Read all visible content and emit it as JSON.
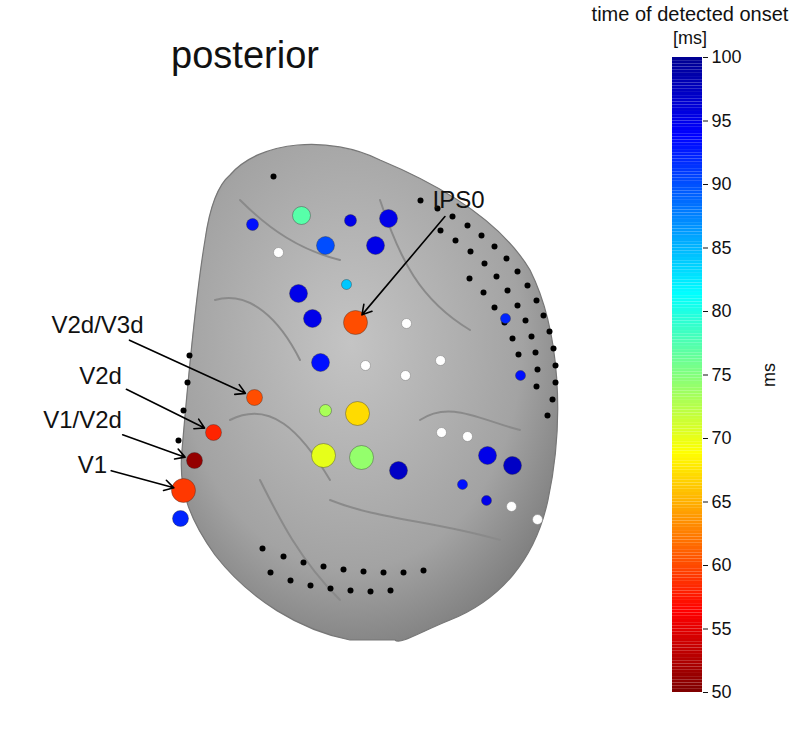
{
  "chart_data": {
    "type": "scatter",
    "title": "posterior",
    "tick_labels": false,
    "xlim": [
      0,
      800
    ],
    "ylim": [
      0,
      738
    ],
    "colorbar": {
      "title": "time of detected onset",
      "unit": "[ms]",
      "label": "ms",
      "range": [
        50,
        100
      ],
      "ticks": [
        50,
        55,
        60,
        65,
        70,
        75,
        80,
        85,
        90,
        95,
        100
      ]
    },
    "series": [
      {
        "color": "black",
        "x": [
          273,
          420,
          437,
          452,
          467,
          481,
          494,
          506,
          517,
          527,
          536,
          543,
          549,
          553,
          555,
          555,
          552,
          547,
          440,
          455,
          470,
          484,
          496,
          507,
          517,
          525,
          531,
          535,
          537,
          536,
          469,
          483,
          494,
          504,
          512,
          518,
          189,
          187,
          183,
          178,
          262,
          283,
          303,
          323,
          343,
          363,
          383,
          403,
          423,
          270,
          290,
          310,
          330,
          350,
          370,
          390
        ],
        "y": [
          176,
          200,
          208,
          216,
          225,
          235,
          246,
          258,
          271,
          285,
          300,
          315,
          331,
          348,
          365,
          382,
          399,
          415,
          230,
          240,
          251,
          263,
          276,
          290,
          305,
          320,
          336,
          352,
          369,
          386,
          278,
          292,
          307,
          322,
          338,
          354,
          355,
          382,
          410,
          440,
          548,
          556,
          562,
          566,
          569,
          571,
          572,
          572,
          570,
          572,
          580,
          585,
          588,
          590,
          591,
          590
        ]
      },
      {
        "color": "white",
        "x": [
          278,
          406,
          365,
          405,
          440,
          441,
          467,
          511,
          537
        ],
        "y": [
          252,
          323,
          365,
          375,
          360,
          432,
          436,
          506,
          519
        ]
      },
      {
        "x": [
          301,
          252,
          350,
          388,
          325,
          375,
          346,
          298,
          312,
          355,
          320,
          254,
          213,
          194,
          183,
          180,
          325,
          357,
          323,
          361,
          398,
          505,
          520,
          487,
          512,
          462,
          486
        ],
        "y": [
          215,
          224,
          220,
          218,
          245,
          245,
          284,
          293,
          318,
          322,
          362,
          397,
          432,
          460,
          490,
          518,
          410,
          413,
          455,
          457,
          470,
          318,
          375,
          455,
          465,
          484,
          500
        ],
        "values": [
          77,
          93,
          95,
          95,
          90,
          95,
          84,
          95,
          95,
          60,
          93,
          60,
          58,
          51,
          59,
          92,
          73,
          67,
          70,
          74,
          97,
          92,
          93,
          95,
          97,
          93,
          95
        ],
        "sizes": [
          9,
          6,
          6,
          9,
          9,
          9,
          5,
          9,
          9,
          12,
          9,
          8,
          8,
          8,
          12,
          8,
          6,
          12,
          12,
          12,
          9,
          5,
          5,
          9,
          9,
          5,
          5
        ]
      }
    ],
    "annotations": [
      {
        "text": "IPS0",
        "text_x": 458,
        "text_y": 200,
        "x": 355,
        "y": 322
      },
      {
        "text": "V2d/V3d",
        "text_x": 97,
        "text_y": 325,
        "x": 254,
        "y": 397
      },
      {
        "text": "V2d",
        "text_x": 100,
        "text_y": 376,
        "x": 213,
        "y": 432
      },
      {
        "text": "V1/V2d",
        "text_x": 82,
        "text_y": 420,
        "x": 194,
        "y": 460
      },
      {
        "text": "V1",
        "text_x": 92,
        "text_y": 465,
        "x": 183,
        "y": 490
      }
    ]
  }
}
